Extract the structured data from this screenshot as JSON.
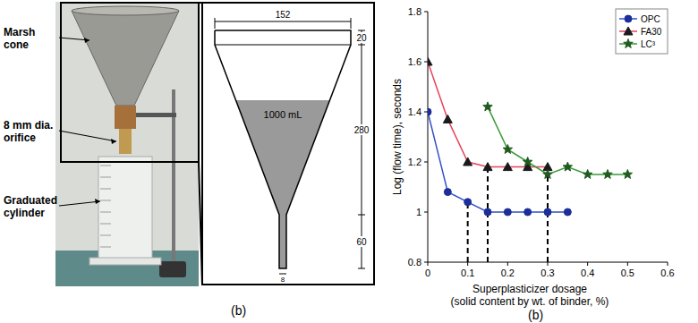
{
  "chart_data": {
    "type": "line",
    "y_label": "Log (flow time), seconds",
    "x_label": "Superplasticizer dosage",
    "x_label_note": "(solid content by wt. of binder, %)",
    "caption": "(b)",
    "xlim": [
      0,
      0.6
    ],
    "xticks": [
      0,
      0.1,
      0.2,
      0.3,
      0.4,
      0.5,
      0.6
    ],
    "ylim": [
      0.8,
      1.8
    ],
    "yticks": [
      0.8,
      1,
      1.2,
      1.4,
      1.6,
      1.8
    ],
    "grid": false,
    "legend": "top-right",
    "series": [
      {
        "name": "OPC",
        "color": "#3050c8",
        "marker": "circle",
        "line_style": "solid",
        "x": [
          0,
          0.05,
          0.1,
          0.15,
          0.2,
          0.25,
          0.3,
          0.35
        ],
        "values": [
          1.4,
          1.08,
          1.04,
          1.0,
          1.0,
          1.0,
          1.0,
          1.0
        ]
      },
      {
        "name": "FA30",
        "color": "#e8405a",
        "marker": "triangle",
        "line_style": "solid",
        "x": [
          0,
          0.05,
          0.1,
          0.15,
          0.2,
          0.25,
          0.3
        ],
        "values": [
          1.6,
          1.37,
          1.2,
          1.18,
          1.18,
          1.18,
          1.18
        ]
      },
      {
        "name": "LC³",
        "color": "#3a9a3a",
        "marker": "star",
        "line_style": "solid",
        "x": [
          0.15,
          0.2,
          0.25,
          0.3,
          0.35,
          0.4,
          0.45,
          0.5
        ],
        "values": [
          1.42,
          1.25,
          1.2,
          1.15,
          1.18,
          1.15,
          1.15,
          1.15
        ]
      }
    ],
    "drop_lines": [
      {
        "x": 0.1,
        "y": 1.04
      },
      {
        "x": 0.15,
        "y": 1.18
      },
      {
        "x": 0.3,
        "y": 1.18
      }
    ]
  },
  "figure": {
    "caption": "(b)",
    "photo_labels": [
      {
        "lines": [
          "Marsh",
          "cone"
        ]
      },
      {
        "lines": [
          "8 mm dia.",
          "orifice"
        ]
      },
      {
        "lines": [
          "Graduated",
          "cylinder"
        ]
      }
    ],
    "dimensions": {
      "top_width": "152",
      "rim_height": "20",
      "cone_height": "280",
      "tube_height": "60",
      "orifice": "8"
    },
    "volume": "1000 mL"
  }
}
